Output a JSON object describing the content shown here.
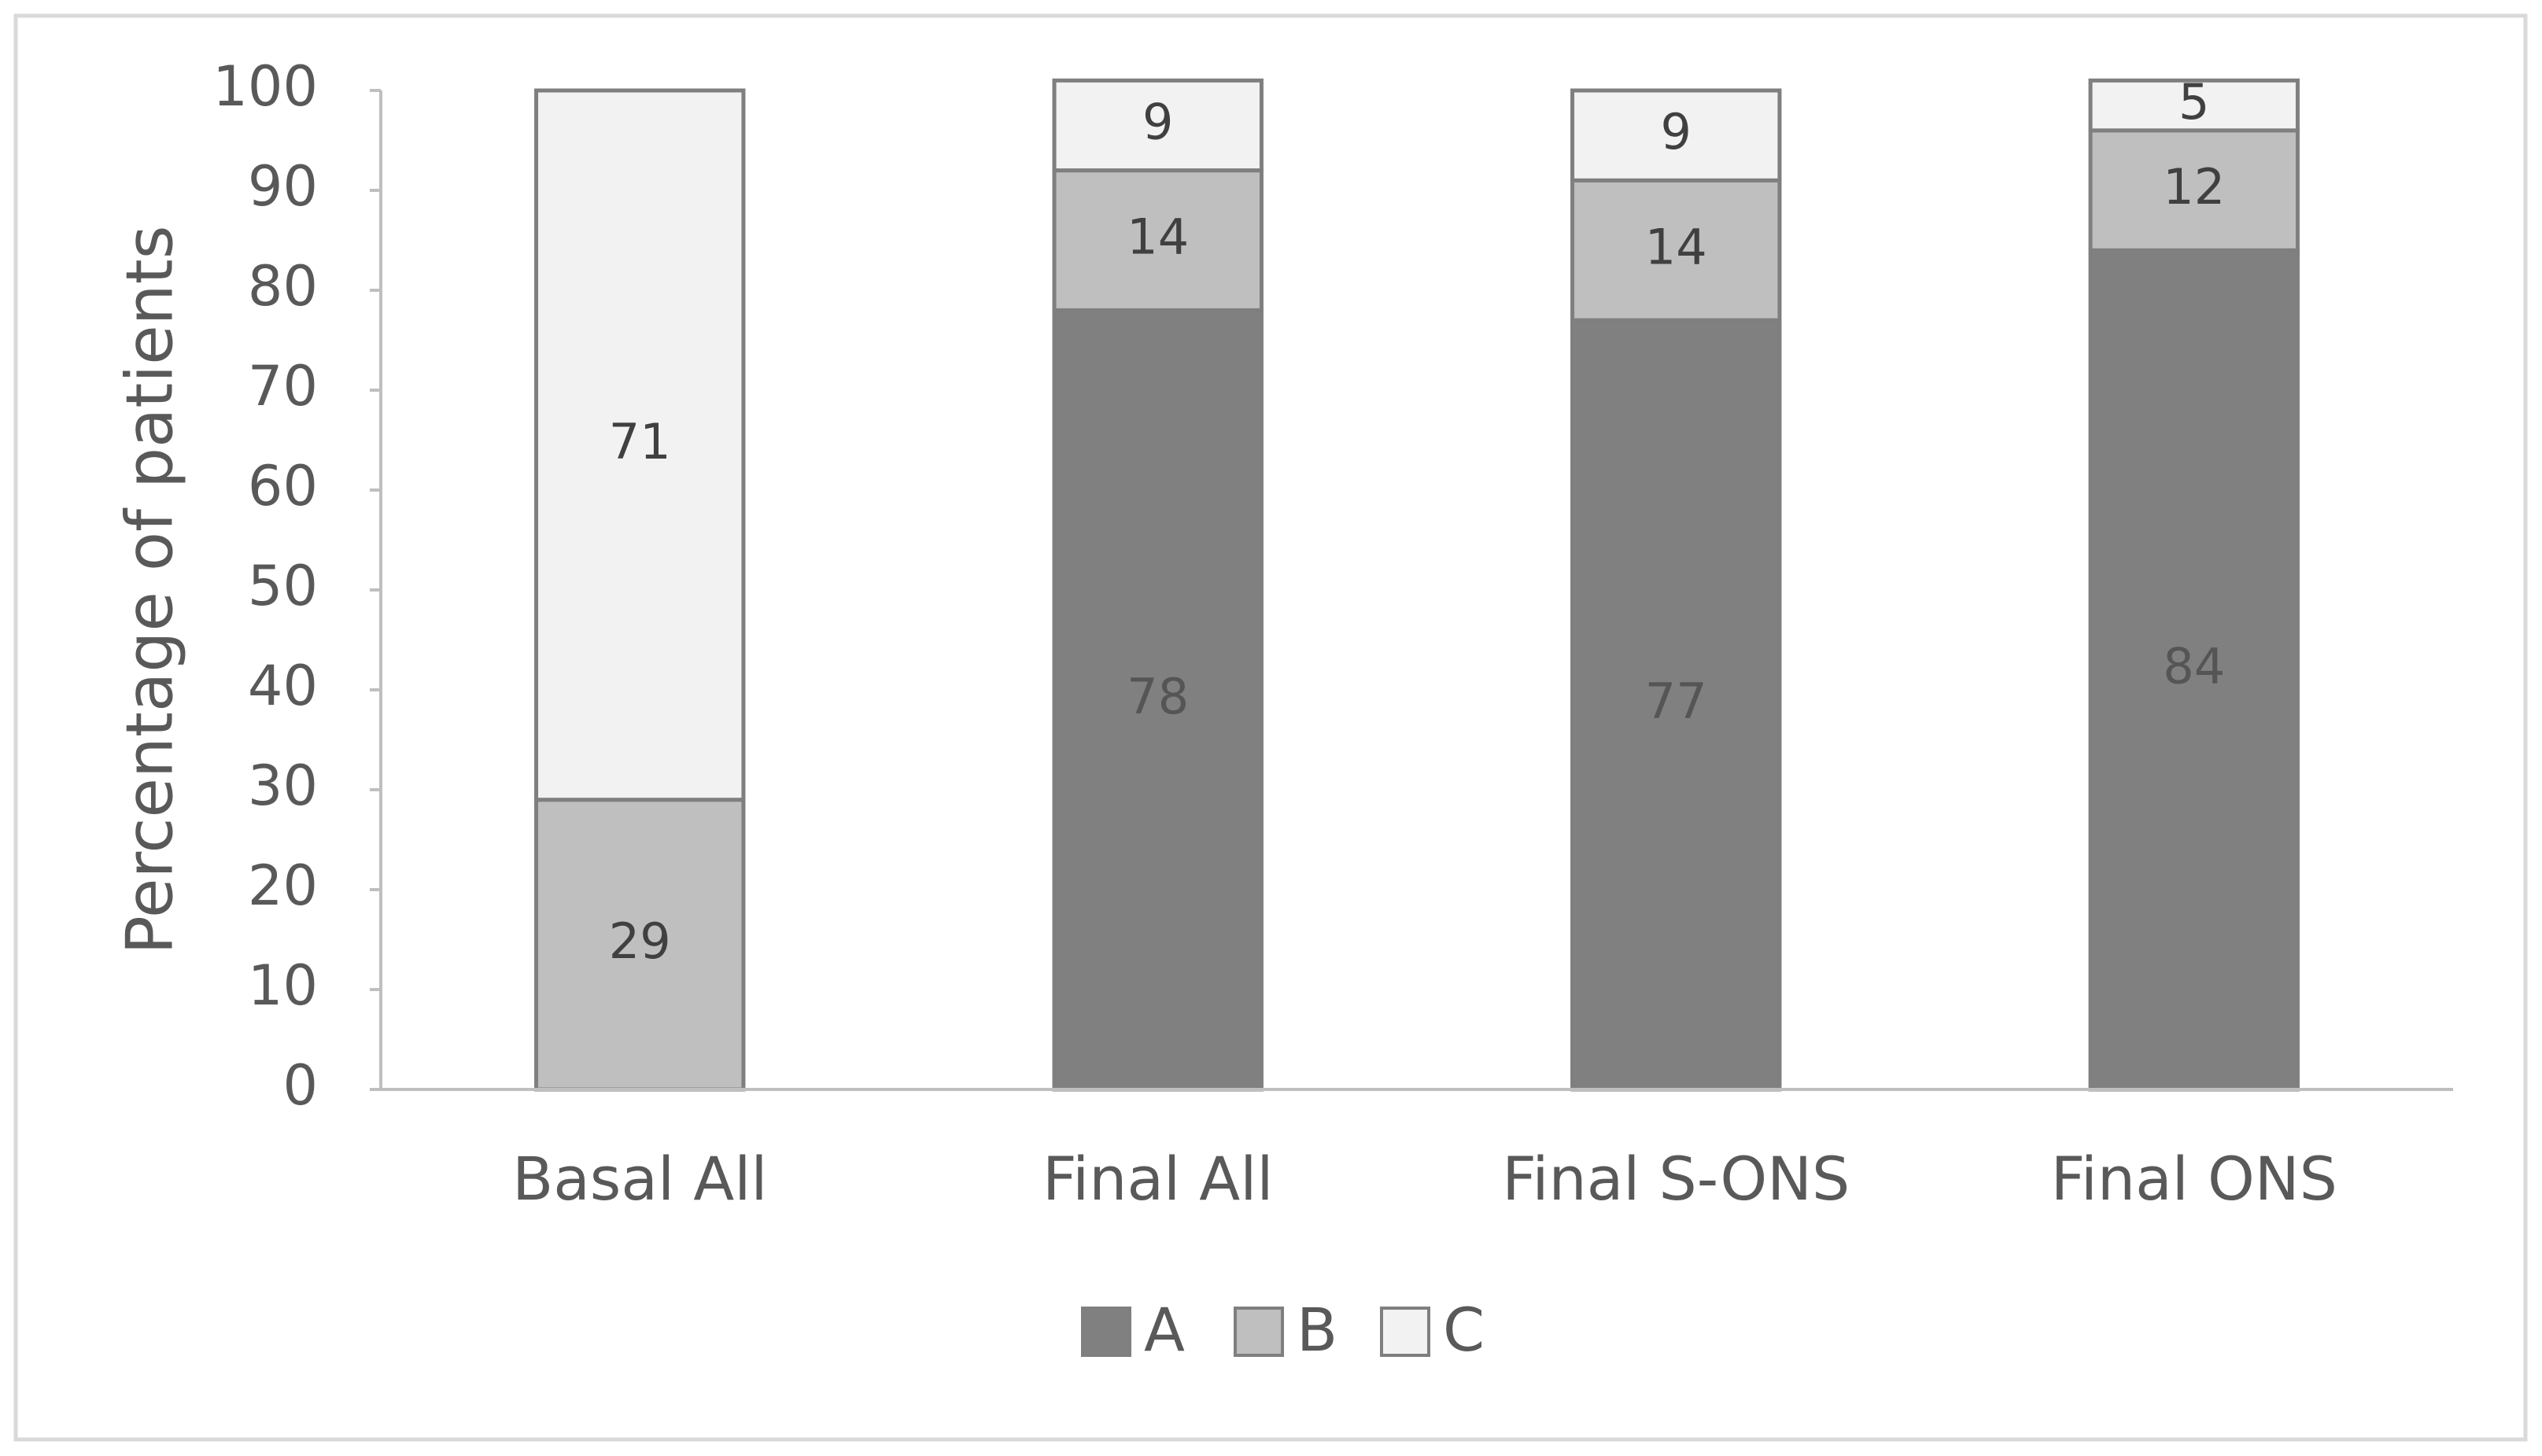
{
  "chart_data": {
    "type": "stacked-bar",
    "y_label": "Percentage of patients",
    "categories": [
      "Basal All",
      "Final All",
      "Final S-ONS",
      "Final ONS"
    ],
    "series": [
      {
        "name": "A",
        "color": "#808080",
        "values": [
          null,
          78,
          77,
          84
        ]
      },
      {
        "name": "B",
        "color": "#bfbfbf",
        "values": [
          29,
          14,
          14,
          12
        ]
      },
      {
        "name": "C",
        "color": "#f2f2f2",
        "values": [
          71,
          9,
          9,
          5
        ]
      }
    ],
    "ylim": [
      0,
      100
    ],
    "yticks": [
      0,
      10,
      20,
      30,
      40,
      50,
      60,
      70,
      80,
      90,
      100
    ],
    "legend": "bottom"
  }
}
